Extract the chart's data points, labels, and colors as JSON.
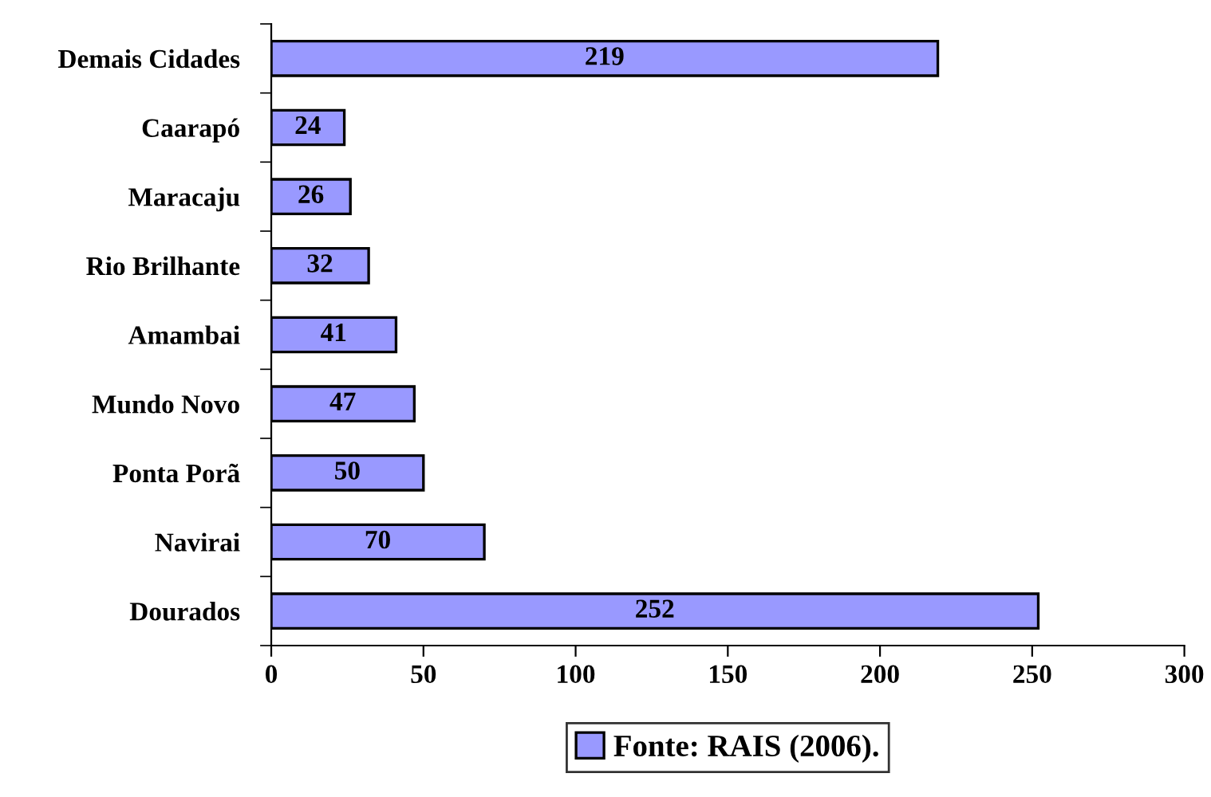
{
  "chart_data": {
    "type": "bar",
    "orientation": "horizontal",
    "categories": [
      "Demais Cidades",
      "Caarapó",
      "Maracaju",
      "Rio Brilhante",
      "Amambai",
      "Mundo Novo",
      "Ponta Porã",
      "Navirai",
      "Dourados"
    ],
    "series": [
      {
        "name": "Fonte: RAIS (2006).",
        "color": "#9999ff",
        "values": [
          219,
          24,
          26,
          32,
          41,
          47,
          50,
          70,
          252
        ]
      }
    ],
    "xlim": [
      0,
      300
    ],
    "xticks": [
      0,
      50,
      100,
      150,
      200,
      250,
      300
    ],
    "data_labels": true,
    "grid": false,
    "legend": "bottom"
  }
}
